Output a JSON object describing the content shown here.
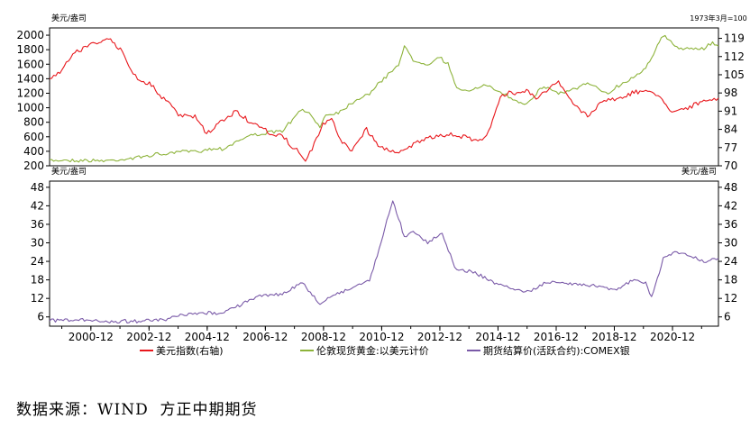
{
  "source_text": "数据来源：WIND  方正中期期货",
  "chart_data": [
    {
      "type": "line",
      "panel": "top",
      "left_axis_unit": "美元/盎司",
      "right_axis_unit": "1973年3月=100",
      "ylim_left": [
        200,
        2100
      ],
      "yticks_left": [
        200,
        400,
        600,
        800,
        1000,
        1200,
        1400,
        1600,
        1800,
        2000
      ],
      "ylim_right": [
        70,
        123
      ],
      "yticks_right": [
        70,
        77,
        84,
        91,
        98,
        105,
        112,
        119
      ],
      "x_tick_labels": [
        "2000-12",
        "2002-12",
        "2004-12",
        "2006-12",
        "2008-12",
        "2010-12",
        "2012-12",
        "2014-12",
        "2016-12",
        "2018-12",
        "2020-12"
      ],
      "x_ticks": [
        2000.92,
        2002.92,
        2004.92,
        2006.92,
        2008.92,
        2010.92,
        2012.92,
        2014.92,
        2016.92,
        2018.92,
        2020.92
      ],
      "xlim": [
        1999.5,
        2022.5
      ],
      "series": [
        {
          "name": "伦敦现货黄金:以美元计价",
          "color": "#8db33a",
          "axis": "left",
          "x": [
            1999.5,
            2000.0,
            2000.5,
            2001.0,
            2001.5,
            2002.0,
            2002.5,
            2003.0,
            2003.5,
            2004.0,
            2004.5,
            2005.0,
            2005.5,
            2006.0,
            2006.5,
            2007.0,
            2007.5,
            2008.0,
            2008.2,
            2008.5,
            2008.8,
            2009.0,
            2009.5,
            2010.0,
            2010.5,
            2011.0,
            2011.5,
            2011.7,
            2012.0,
            2012.5,
            2012.9,
            2013.2,
            2013.5,
            2014.0,
            2014.5,
            2015.0,
            2015.5,
            2015.9,
            2016.5,
            2017.0,
            2017.5,
            2018.0,
            2018.7,
            2019.0,
            2019.5,
            2020.0,
            2020.6,
            2021.0,
            2021.5,
            2022.0,
            2022.3,
            2022.5
          ],
          "values": [
            270,
            280,
            275,
            270,
            270,
            290,
            310,
            350,
            360,
            400,
            400,
            430,
            440,
            550,
            630,
            650,
            680,
            900,
            980,
            880,
            750,
            900,
            950,
            1100,
            1200,
            1400,
            1600,
            1850,
            1650,
            1600,
            1700,
            1600,
            1250,
            1250,
            1300,
            1220,
            1100,
            1060,
            1300,
            1200,
            1250,
            1330,
            1200,
            1290,
            1400,
            1550,
            2000,
            1850,
            1800,
            1820,
            1900,
            1850
          ]
        },
        {
          "name": "美元指数(右轴)",
          "color": "#e8171c",
          "axis": "right",
          "x": [
            1999.5,
            2000.0,
            2000.3,
            2000.8,
            2001.2,
            2001.6,
            2002.0,
            2002.3,
            2002.6,
            2003.0,
            2003.5,
            2004.0,
            2004.5,
            2004.9,
            2005.3,
            2005.9,
            2006.5,
            2007.0,
            2007.5,
            2008.0,
            2008.3,
            2008.6,
            2008.9,
            2009.2,
            2009.5,
            2009.9,
            2010.4,
            2010.8,
            2011.3,
            2011.8,
            2012.3,
            2012.8,
            2013.3,
            2013.8,
            2014.3,
            2014.6,
            2015.0,
            2015.3,
            2015.9,
            2016.3,
            2016.8,
            2017.0,
            2017.5,
            2018.0,
            2018.5,
            2019.0,
            2019.6,
            2020.2,
            2020.5,
            2020.9,
            2021.3,
            2021.8,
            2022.2,
            2022.5
          ],
          "values": [
            103,
            108,
            113,
            116,
            118,
            118,
            114,
            107,
            103,
            101,
            95,
            89,
            89,
            82,
            86,
            91,
            86,
            83,
            81,
            76,
            72,
            78,
            86,
            88,
            80,
            76,
            84,
            78,
            75,
            77,
            80,
            81,
            82,
            81,
            80,
            83,
            96,
            98,
            99,
            96,
            101,
            102,
            94,
            89,
            95,
            96,
            98,
            99,
            96,
            91,
            92,
            94,
            95,
            96
          ]
        }
      ]
    },
    {
      "type": "line",
      "panel": "bottom",
      "left_axis_unit": "美元/盎司",
      "right_axis_unit": "美元/盎司",
      "ylim": [
        3,
        50
      ],
      "yticks": [
        6,
        12,
        18,
        24,
        30,
        36,
        42,
        48
      ],
      "x_tick_labels": [
        "2000-12",
        "2002-12",
        "2004-12",
        "2006-12",
        "2008-12",
        "2010-12",
        "2012-12",
        "2014-12",
        "2016-12",
        "2018-12",
        "2020-12"
      ],
      "x_ticks": [
        2000.92,
        2002.92,
        2004.92,
        2006.92,
        2008.92,
        2010.92,
        2012.92,
        2014.92,
        2016.92,
        2018.92,
        2020.92
      ],
      "xlim": [
        1999.5,
        2022.5
      ],
      "series": [
        {
          "name": "期货结算价(活跃合约):COMEX银",
          "color": "#7a5aa8",
          "axis": "left",
          "x": [
            1999.5,
            2000.5,
            2001.5,
            2002.5,
            2003.5,
            2004.0,
            2004.5,
            2005.5,
            2006.3,
            2006.8,
            2007.5,
            2008.2,
            2008.8,
            2009.2,
            2009.8,
            2010.5,
            2010.9,
            2011.3,
            2011.7,
            2012.0,
            2012.5,
            2013.0,
            2013.5,
            2014.0,
            2014.8,
            2015.5,
            2016.0,
            2016.5,
            2017.0,
            2018.0,
            2019.0,
            2019.6,
            2020.0,
            2020.2,
            2020.6,
            2021.0,
            2021.5,
            2022.0,
            2022.5
          ],
          "values": [
            5,
            5,
            4.5,
            4.7,
            5,
            6.5,
            7,
            7.5,
            11,
            13,
            13.5,
            17,
            10,
            13,
            15,
            18,
            30,
            44,
            32,
            34,
            30,
            33,
            21,
            21,
            17,
            15,
            14,
            17,
            17,
            16.5,
            15,
            18,
            17,
            12,
            25,
            27,
            26,
            24,
            25
          ]
        }
      ]
    }
  ]
}
